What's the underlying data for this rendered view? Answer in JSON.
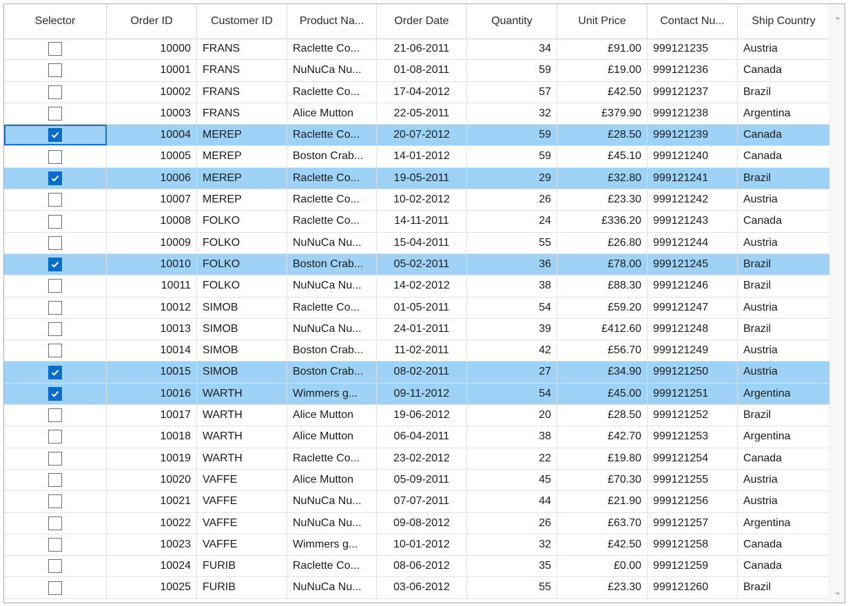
{
  "columns": [
    {
      "key": "selector",
      "label": "Selector",
      "align": "center"
    },
    {
      "key": "order_id",
      "label": "Order ID",
      "align": "right"
    },
    {
      "key": "customer_id",
      "label": "Customer ID",
      "align": "left"
    },
    {
      "key": "product_name",
      "label": "Product Na...",
      "align": "left"
    },
    {
      "key": "order_date",
      "label": "Order Date",
      "align": "center"
    },
    {
      "key": "quantity",
      "label": "Quantity",
      "align": "right"
    },
    {
      "key": "unit_price",
      "label": "Unit Price",
      "align": "right"
    },
    {
      "key": "contact_number",
      "label": "Contact Nu...",
      "align": "left"
    },
    {
      "key": "ship_country",
      "label": "Ship Country",
      "align": "left"
    }
  ],
  "rows": [
    {
      "checked": false,
      "order_id": "10000",
      "customer_id": "FRANS",
      "product_name": "Raclette Co...",
      "order_date": "21-06-2011",
      "quantity": "34",
      "unit_price": "£91.00",
      "contact_number": "999121235",
      "ship_country": "Austria"
    },
    {
      "checked": false,
      "order_id": "10001",
      "customer_id": "FRANS",
      "product_name": "NuNuCa Nu...",
      "order_date": "01-08-2011",
      "quantity": "59",
      "unit_price": "£19.00",
      "contact_number": "999121236",
      "ship_country": "Canada"
    },
    {
      "checked": false,
      "order_id": "10002",
      "customer_id": "FRANS",
      "product_name": "Raclette Co...",
      "order_date": "17-04-2012",
      "quantity": "57",
      "unit_price": "£42.50",
      "contact_number": "999121237",
      "ship_country": "Brazil"
    },
    {
      "checked": false,
      "order_id": "10003",
      "customer_id": "FRANS",
      "product_name": "Alice Mutton",
      "order_date": "22-05-2011",
      "quantity": "32",
      "unit_price": "£379.90",
      "contact_number": "999121238",
      "ship_country": "Argentina"
    },
    {
      "checked": true,
      "focused": true,
      "order_id": "10004",
      "customer_id": "MEREP",
      "product_name": "Raclette Co...",
      "order_date": "20-07-2012",
      "quantity": "59",
      "unit_price": "£28.50",
      "contact_number": "999121239",
      "ship_country": "Canada"
    },
    {
      "checked": false,
      "order_id": "10005",
      "customer_id": "MEREP",
      "product_name": "Boston Crab...",
      "order_date": "14-01-2012",
      "quantity": "59",
      "unit_price": "£45.10",
      "contact_number": "999121240",
      "ship_country": "Canada"
    },
    {
      "checked": true,
      "order_id": "10006",
      "customer_id": "MEREP",
      "product_name": "Raclette Co...",
      "order_date": "19-05-2011",
      "quantity": "29",
      "unit_price": "£32.80",
      "contact_number": "999121241",
      "ship_country": "Brazil"
    },
    {
      "checked": false,
      "order_id": "10007",
      "customer_id": "MEREP",
      "product_name": "Raclette Co...",
      "order_date": "10-02-2012",
      "quantity": "26",
      "unit_price": "£23.30",
      "contact_number": "999121242",
      "ship_country": "Austria"
    },
    {
      "checked": false,
      "order_id": "10008",
      "customer_id": "FOLKO",
      "product_name": "Raclette Co...",
      "order_date": "14-11-2011",
      "quantity": "24",
      "unit_price": "£336.20",
      "contact_number": "999121243",
      "ship_country": "Canada"
    },
    {
      "checked": false,
      "order_id": "10009",
      "customer_id": "FOLKO",
      "product_name": "NuNuCa Nu...",
      "order_date": "15-04-2011",
      "quantity": "55",
      "unit_price": "£26.80",
      "contact_number": "999121244",
      "ship_country": "Austria"
    },
    {
      "checked": true,
      "order_id": "10010",
      "customer_id": "FOLKO",
      "product_name": "Boston Crab...",
      "order_date": "05-02-2011",
      "quantity": "36",
      "unit_price": "£78.00",
      "contact_number": "999121245",
      "ship_country": "Brazil"
    },
    {
      "checked": false,
      "order_id": "10011",
      "customer_id": "FOLKO",
      "product_name": "NuNuCa Nu...",
      "order_date": "14-02-2012",
      "quantity": "38",
      "unit_price": "£88.30",
      "contact_number": "999121246",
      "ship_country": "Brazil"
    },
    {
      "checked": false,
      "order_id": "10012",
      "customer_id": "SIMOB",
      "product_name": "Raclette Co...",
      "order_date": "01-05-2011",
      "quantity": "54",
      "unit_price": "£59.20",
      "contact_number": "999121247",
      "ship_country": "Austria"
    },
    {
      "checked": false,
      "order_id": "10013",
      "customer_id": "SIMOB",
      "product_name": "NuNuCa Nu...",
      "order_date": "24-01-2011",
      "quantity": "39",
      "unit_price": "£412.60",
      "contact_number": "999121248",
      "ship_country": "Brazil"
    },
    {
      "checked": false,
      "order_id": "10014",
      "customer_id": "SIMOB",
      "product_name": "Boston Crab...",
      "order_date": "11-02-2011",
      "quantity": "42",
      "unit_price": "£56.70",
      "contact_number": "999121249",
      "ship_country": "Austria"
    },
    {
      "checked": true,
      "order_id": "10015",
      "customer_id": "SIMOB",
      "product_name": "Boston Crab...",
      "order_date": "08-02-2011",
      "quantity": "27",
      "unit_price": "£34.90",
      "contact_number": "999121250",
      "ship_country": "Austria"
    },
    {
      "checked": true,
      "order_id": "10016",
      "customer_id": "WARTH",
      "product_name": "Wimmers g...",
      "order_date": "09-11-2012",
      "quantity": "54",
      "unit_price": "£45.00",
      "contact_number": "999121251",
      "ship_country": "Argentina"
    },
    {
      "checked": false,
      "order_id": "10017",
      "customer_id": "WARTH",
      "product_name": "Alice Mutton",
      "order_date": "19-06-2012",
      "quantity": "20",
      "unit_price": "£28.50",
      "contact_number": "999121252",
      "ship_country": "Brazil"
    },
    {
      "checked": false,
      "order_id": "10018",
      "customer_id": "WARTH",
      "product_name": "Alice Mutton",
      "order_date": "06-04-2011",
      "quantity": "38",
      "unit_price": "£42.70",
      "contact_number": "999121253",
      "ship_country": "Argentina"
    },
    {
      "checked": false,
      "order_id": "10019",
      "customer_id": "WARTH",
      "product_name": "Raclette Co...",
      "order_date": "23-02-2012",
      "quantity": "22",
      "unit_price": "£19.80",
      "contact_number": "999121254",
      "ship_country": "Canada"
    },
    {
      "checked": false,
      "order_id": "10020",
      "customer_id": "VAFFE",
      "product_name": "Alice Mutton",
      "order_date": "05-09-2011",
      "quantity": "45",
      "unit_price": "£70.30",
      "contact_number": "999121255",
      "ship_country": "Austria"
    },
    {
      "checked": false,
      "order_id": "10021",
      "customer_id": "VAFFE",
      "product_name": "NuNuCa Nu...",
      "order_date": "07-07-2011",
      "quantity": "44",
      "unit_price": "£21.90",
      "contact_number": "999121256",
      "ship_country": "Austria"
    },
    {
      "checked": false,
      "order_id": "10022",
      "customer_id": "VAFFE",
      "product_name": "NuNuCa Nu...",
      "order_date": "09-08-2012",
      "quantity": "26",
      "unit_price": "£63.70",
      "contact_number": "999121257",
      "ship_country": "Argentina"
    },
    {
      "checked": false,
      "order_id": "10023",
      "customer_id": "VAFFE",
      "product_name": "Wimmers g...",
      "order_date": "10-01-2012",
      "quantity": "32",
      "unit_price": "£42.50",
      "contact_number": "999121258",
      "ship_country": "Canada"
    },
    {
      "checked": false,
      "order_id": "10024",
      "customer_id": "FURIB",
      "product_name": "Raclette Co...",
      "order_date": "08-06-2012",
      "quantity": "35",
      "unit_price": "£0.00",
      "contact_number": "999121259",
      "ship_country": "Canada"
    },
    {
      "checked": false,
      "order_id": "10025",
      "customer_id": "FURIB",
      "product_name": "NuNuCa Nu...",
      "order_date": "03-06-2012",
      "quantity": "55",
      "unit_price": "£23.30",
      "contact_number": "999121260",
      "ship_country": "Brazil"
    }
  ],
  "scrollbar": {
    "up_icon": "chevron-up-icon",
    "down_icon": "chevron-down-icon"
  },
  "colors": {
    "selected_row": "#9fd2f7",
    "checkbox_checked": "#0a6bc8",
    "focus_border": "#1a6fc6"
  }
}
